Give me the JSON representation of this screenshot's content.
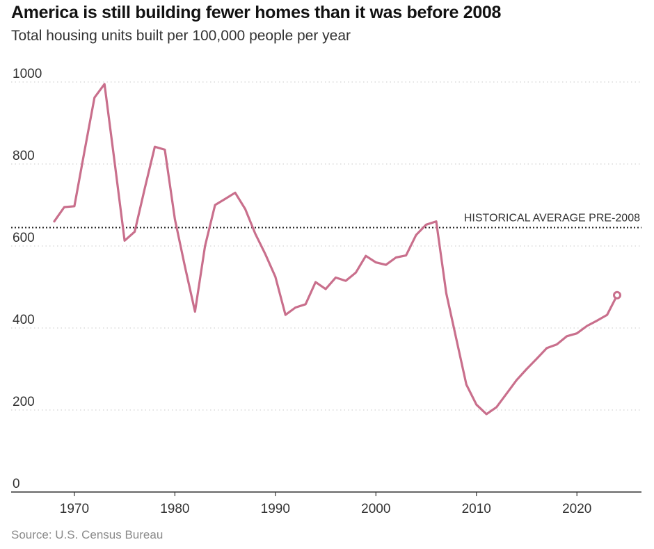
{
  "title": "America is still building fewer homes than it was before 2008",
  "subtitle": "Total housing units built per 100,000 people per year",
  "source": "Source: U.S. Census Bureau",
  "colors": {
    "line": "#c96f8c",
    "grid": "#c8c8c8",
    "reference": "#222222",
    "axis": "#333333"
  },
  "chart_data": {
    "type": "line",
    "title": "America is still building fewer homes than it was before 2008",
    "subtitle": "Total housing units built per 100,000 people per year",
    "xlabel": "",
    "ylabel": "",
    "xlim": [
      1967,
      2026
    ],
    "ylim": [
      0,
      1000
    ],
    "yticks": [
      0,
      200,
      400,
      600,
      800,
      1000
    ],
    "xticks": [
      1970,
      1980,
      1990,
      2000,
      2010,
      2020
    ],
    "grid": "horizontal dotted",
    "reference_line": {
      "value": 645,
      "label": "HISTORICAL AVERAGE PRE-2008"
    },
    "series": [
      {
        "x": [
          1968,
          1969,
          1970,
          1971,
          1972,
          1973,
          1974,
          1975,
          1976,
          1977,
          1978,
          1979,
          1980,
          1981,
          1982,
          1983,
          1984,
          1985,
          1986,
          1987,
          1988,
          1989,
          1990,
          1991,
          1992,
          1993,
          1994,
          1995,
          1996,
          1997,
          1998,
          1999,
          2000,
          2001,
          2002,
          2003,
          2004,
          2005,
          2006,
          2007,
          2008,
          2009,
          2010,
          2011,
          2012,
          2013,
          2014,
          2015,
          2016,
          2017,
          2018,
          2019,
          2020,
          2021,
          2022,
          2023,
          2024
        ],
        "y": [
          660,
          695,
          697,
          830,
          962,
          995,
          805,
          613,
          635,
          740,
          842,
          835,
          665,
          550,
          440,
          600,
          700,
          715,
          730,
          690,
          630,
          580,
          525,
          432,
          450,
          458,
          512,
          495,
          523,
          515,
          535,
          576,
          560,
          554,
          572,
          577,
          627,
          652,
          660,
          485,
          373,
          262,
          213,
          190,
          207,
          240,
          273,
          300,
          325,
          351,
          360,
          380,
          387,
          405,
          418,
          432,
          480
        ],
        "endpoint_marker": true
      }
    ]
  }
}
